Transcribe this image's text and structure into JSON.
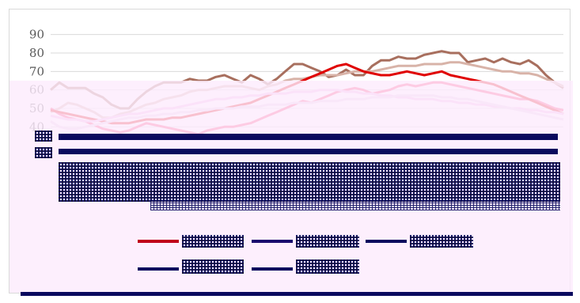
{
  "chart_data": {
    "type": "line",
    "title": "",
    "xlabel": "",
    "ylabel": "",
    "ylim": [
      35,
      95
    ],
    "yticks": [
      40,
      50,
      60,
      70,
      80,
      90
    ],
    "grid": true,
    "legend_position": "bottom",
    "x_count": 60,
    "series": [
      {
        "color": "#a86f5e",
        "values": [
          60,
          64,
          61,
          61,
          61,
          58,
          56,
          52,
          50,
          50,
          55,
          59,
          62,
          64,
          64,
          64,
          66,
          65,
          65,
          67,
          68,
          66,
          64,
          68,
          66,
          63,
          66,
          70,
          74,
          74,
          72,
          70,
          67,
          68,
          71,
          68,
          68,
          73,
          76,
          76,
          78,
          77,
          77,
          79,
          80,
          81,
          80,
          80,
          75,
          76,
          77,
          75,
          77,
          75,
          74,
          76,
          73,
          68,
          64,
          61
        ]
      },
      {
        "color": "#d8b3a8",
        "values": [
          48,
          50,
          53,
          52,
          50,
          48,
          45,
          45,
          47,
          48,
          50,
          52,
          53,
          55,
          56,
          57,
          59,
          60,
          60,
          61,
          62,
          62,
          62,
          61,
          60,
          62,
          63,
          65,
          66,
          66,
          67,
          68,
          68,
          68,
          69,
          70,
          70,
          70,
          71,
          72,
          73,
          73,
          73,
          74,
          74,
          74,
          75,
          75,
          74,
          73,
          72,
          71,
          70,
          70,
          69,
          69,
          68,
          66,
          64,
          62
        ]
      },
      {
        "color": "#ff3b6f",
        "values": [
          50,
          47,
          45,
          44,
          43,
          41,
          39,
          38,
          37,
          38,
          40,
          42,
          41,
          40,
          39,
          38,
          37,
          36,
          38,
          39,
          40,
          40,
          41,
          42,
          44,
          46,
          48,
          50,
          52,
          54,
          53,
          55,
          57,
          59,
          60,
          61,
          60,
          58,
          59,
          60,
          62,
          63,
          62,
          63,
          64,
          64,
          63,
          62,
          61,
          60,
          59,
          58,
          57,
          56,
          55,
          55,
          54,
          52,
          50,
          49
        ]
      },
      {
        "color": "#e00000",
        "values": [
          49,
          48,
          47,
          46,
          45,
          44,
          43,
          42,
          42,
          42,
          43,
          44,
          44,
          44,
          45,
          45,
          46,
          47,
          48,
          49,
          50,
          51,
          52,
          53,
          55,
          57,
          59,
          61,
          63,
          65,
          67,
          69,
          71,
          73,
          74,
          72,
          70,
          69,
          68,
          68,
          69,
          70,
          69,
          68,
          69,
          70,
          68,
          67,
          66,
          65,
          64,
          63,
          61,
          59,
          57,
          55,
          53,
          51,
          49,
          47
        ]
      },
      {
        "color": "#f2b6e6",
        "values": [
          46,
          45,
          44,
          44,
          43,
          43,
          44,
          45,
          46,
          47,
          47,
          48,
          49,
          50,
          50,
          51,
          52,
          53,
          54,
          55,
          55,
          56,
          56,
          57,
          57,
          58,
          58,
          58,
          59,
          59,
          59,
          60,
          60,
          60,
          59,
          59,
          58,
          58,
          57,
          57,
          56,
          56,
          55,
          55,
          55,
          54,
          54,
          53,
          53,
          52,
          52,
          51,
          51,
          50,
          50,
          49,
          49,
          48,
          48,
          47
        ]
      },
      {
        "color": "#e6cfe6",
        "values": [
          43,
          40,
          39,
          39,
          40,
          41,
          42,
          43,
          44,
          45,
          45,
          46,
          46,
          47,
          47,
          48,
          48,
          49,
          49,
          50,
          50,
          50,
          51,
          51,
          51,
          52,
          52,
          52,
          53,
          53,
          53,
          54,
          54,
          54,
          55,
          55,
          55,
          56,
          56,
          56,
          57,
          57,
          57,
          57,
          57,
          56,
          56,
          55,
          55,
          54,
          53,
          52,
          51,
          50,
          49,
          48,
          47,
          46,
          45,
          44
        ]
      }
    ]
  }
}
